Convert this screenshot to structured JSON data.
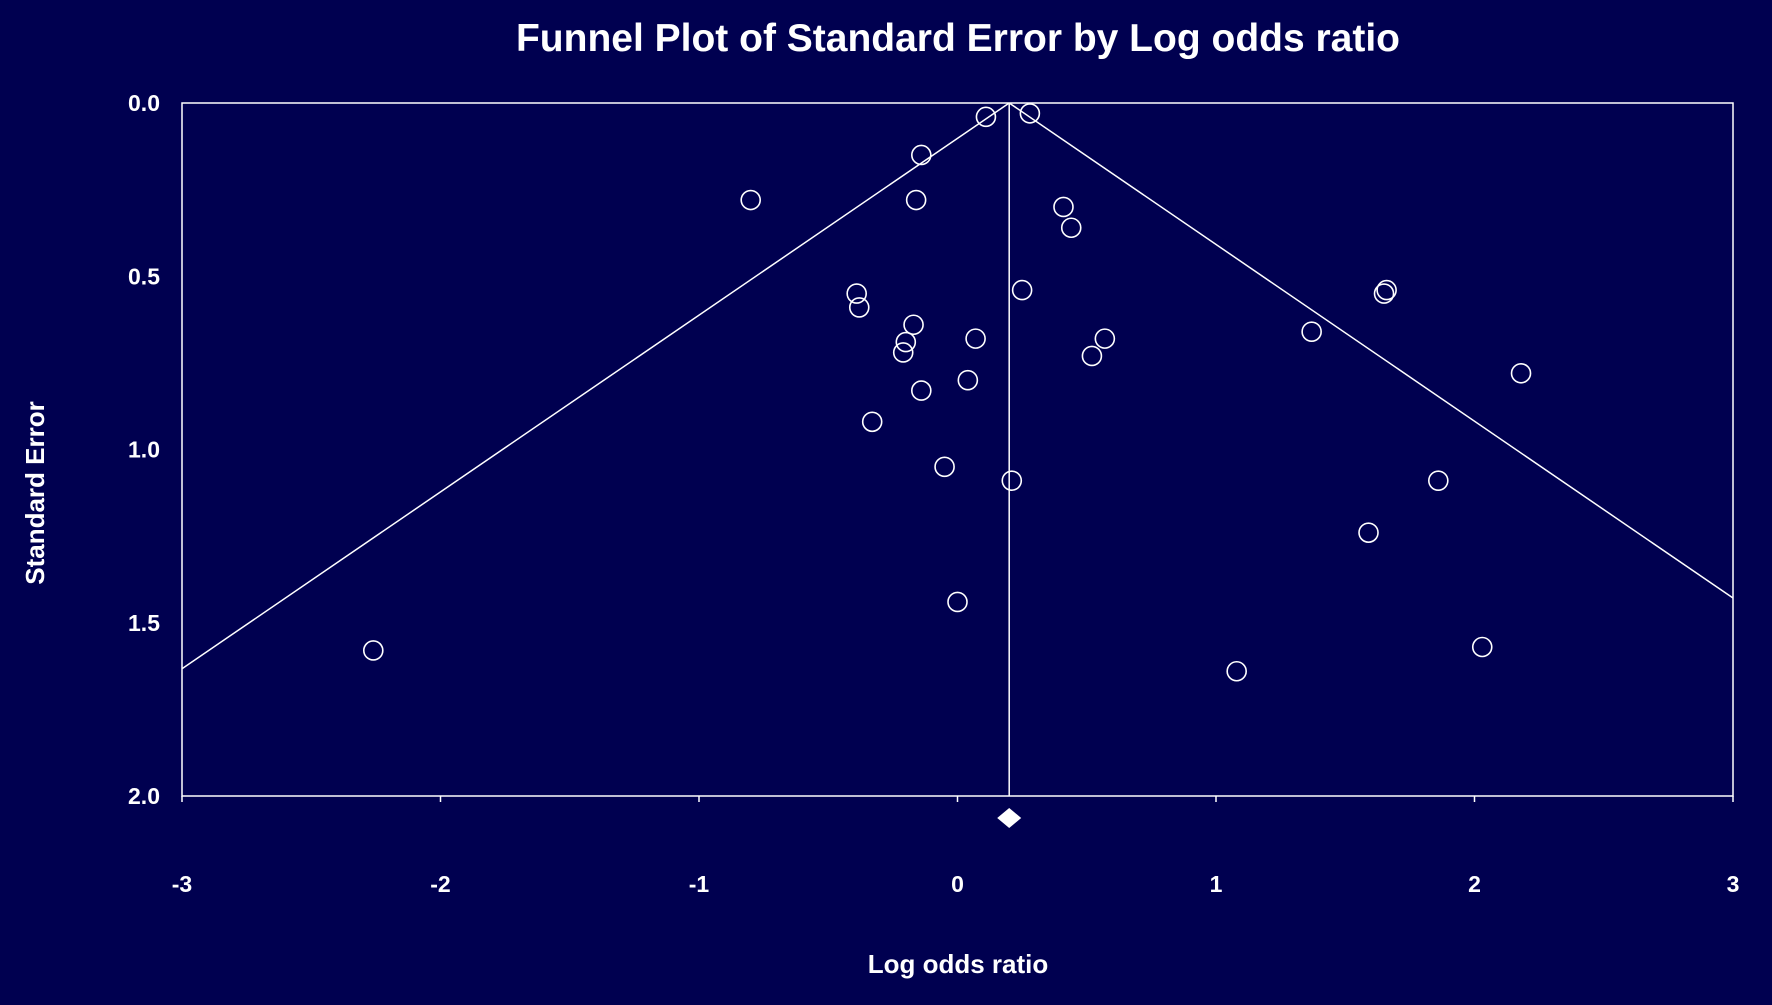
{
  "chart_data": {
    "type": "scatter",
    "title": "Funnel Plot of Standard Error by Log odds ratio",
    "xlabel": "Log odds ratio",
    "ylabel": "Standard Error",
    "xlim": [
      -3,
      3
    ],
    "ylim": [
      0,
      2.0
    ],
    "y_inverted": true,
    "grid": false,
    "legend": "none",
    "x_ticks": [
      -3,
      -2,
      -1,
      0,
      1,
      2,
      3
    ],
    "x_tick_labels": [
      "-3",
      "-2",
      "-1",
      "0",
      "1",
      "2",
      "3"
    ],
    "y_ticks": [
      0,
      0.5,
      1.0,
      1.5,
      2.0
    ],
    "y_tick_labels": [
      "0.0",
      "0.5",
      "1.0",
      "1.5",
      "2.0"
    ],
    "summary_effect": 0.2,
    "funnel_multiplier": 1.96,
    "points": [
      {
        "x": -2.26,
        "y": 1.58
      },
      {
        "x": -0.8,
        "y": 0.28
      },
      {
        "x": -0.39,
        "y": 0.55
      },
      {
        "x": -0.38,
        "y": 0.59
      },
      {
        "x": -0.33,
        "y": 0.92
      },
      {
        "x": -0.21,
        "y": 0.72
      },
      {
        "x": -0.2,
        "y": 0.69
      },
      {
        "x": -0.17,
        "y": 0.64
      },
      {
        "x": -0.16,
        "y": 0.28
      },
      {
        "x": -0.14,
        "y": 0.15
      },
      {
        "x": -0.14,
        "y": 0.83
      },
      {
        "x": -0.05,
        "y": 1.05
      },
      {
        "x": 0.0,
        "y": 1.44
      },
      {
        "x": 0.04,
        "y": 0.8
      },
      {
        "x": 0.07,
        "y": 0.68
      },
      {
        "x": 0.11,
        "y": 0.04
      },
      {
        "x": 0.21,
        "y": 1.09
      },
      {
        "x": 0.25,
        "y": 0.54
      },
      {
        "x": 0.28,
        "y": 0.03
      },
      {
        "x": 0.41,
        "y": 0.3
      },
      {
        "x": 0.44,
        "y": 0.36
      },
      {
        "x": 0.52,
        "y": 0.73
      },
      {
        "x": 0.57,
        "y": 0.68
      },
      {
        "x": 1.08,
        "y": 1.64
      },
      {
        "x": 1.37,
        "y": 0.66
      },
      {
        "x": 1.59,
        "y": 1.24
      },
      {
        "x": 1.65,
        "y": 0.55
      },
      {
        "x": 1.66,
        "y": 0.54
      },
      {
        "x": 1.86,
        "y": 1.09
      },
      {
        "x": 2.03,
        "y": 1.57
      },
      {
        "x": 2.18,
        "y": 0.78
      }
    ],
    "colors": {
      "background": "#000050",
      "foreground": "#ffffff"
    }
  }
}
